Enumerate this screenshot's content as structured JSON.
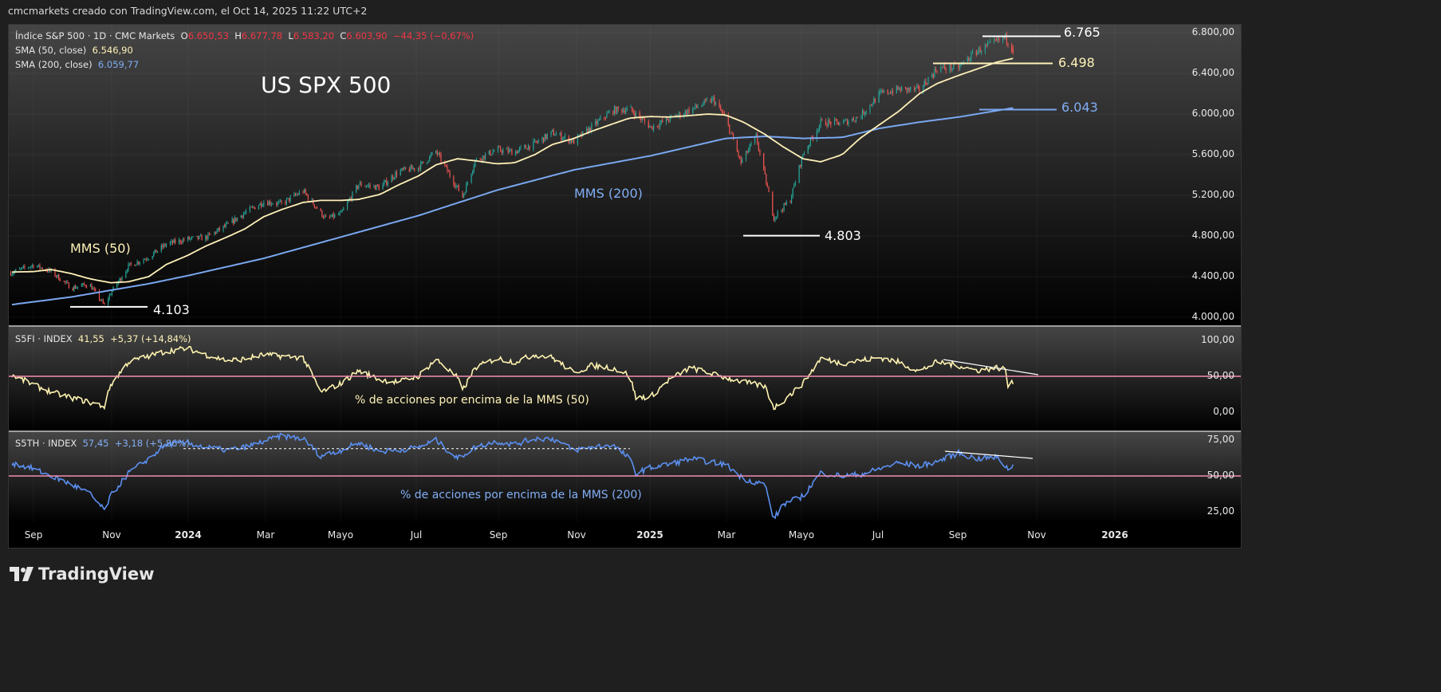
{
  "credit": "cmcmarkets creado con TradingView.com, el Oct 14, 2025 11:22 UTC+2",
  "legend": {
    "symbol": "Índice S&P 500 · 1D · CMC Markets",
    "o_label": "O",
    "o": "6.650,53",
    "h_label": "H",
    "h": "6.677,78",
    "l_label": "L",
    "l": "6.583,20",
    "c_label": "C",
    "c": "6.603,90",
    "change": "−44,35 (−0,67%)",
    "sma50_label": "SMA (50, close)",
    "sma50": "6.546,90",
    "sma200_label": "SMA (200, close)",
    "sma200": "6.059,77",
    "s5fi_label": "S5FI · INDEX",
    "s5fi": "41,55",
    "s5fi_change": "+5,37 (+14,84%)",
    "s5th_label": "S5TH · INDEX",
    "s5th": "57,45",
    "s5th_change": "+3,18 (+5,86%)"
  },
  "annotations": {
    "title": "US SPX 500",
    "mms50": "MMS (50)",
    "mms200": "MMS (200)",
    "level_high": "6.765",
    "level_sma50": "6.498",
    "level_sma200": "6.043",
    "level_low_2025": "4.803",
    "level_low_2023": "4.103",
    "s5fi_caption": "% de acciones por encima de la MMS (50)",
    "s5th_caption": "% de acciones por encima de la MMS (200)"
  },
  "footer": {
    "brand": "TradingView"
  },
  "colors": {
    "up": "#26a69a",
    "down": "#ef5350",
    "sma50": "#fff0b8",
    "sma200": "#7aa7f0",
    "s5fi": "#fff3b0",
    "s5th": "#5b8ff0",
    "threshold": "#f48fb1"
  },
  "chart_data": [
    {
      "type": "candlestick",
      "title": "US SPX 500",
      "price_axis": {
        "ticks": [
          "6.800,00",
          "6.400,00",
          "6.000,00",
          "5.600,00",
          "5.200,00",
          "4.800,00",
          "4.400,00",
          "4.000,00"
        ],
        "ylim": [
          4000,
          6800
        ]
      },
      "time_axis": {
        "labels": [
          "Sep",
          "Nov",
          "2024",
          "Mar",
          "Mayo",
          "Jul",
          "Sep",
          "Nov",
          "2025",
          "Mar",
          "Mayo",
          "Jul",
          "Sep",
          "Nov",
          "2026"
        ]
      },
      "last_candle": {
        "date": "2025-10-14",
        "open": 6650.53,
        "high": 6677.78,
        "low": 6583.2,
        "close": 6603.9
      },
      "close_path": [
        [
          "2023-08-15",
          4440
        ],
        [
          "2023-09-01",
          4515
        ],
        [
          "2023-09-15",
          4450
        ],
        [
          "2023-10-01",
          4288
        ],
        [
          "2023-10-15",
          4327
        ],
        [
          "2023-10-27",
          4117
        ],
        [
          "2023-11-01",
          4237
        ],
        [
          "2023-11-15",
          4502
        ],
        [
          "2023-12-01",
          4594
        ],
        [
          "2023-12-15",
          4719
        ],
        [
          "2024-01-01",
          4770
        ],
        [
          "2024-01-15",
          4783
        ],
        [
          "2024-02-01",
          4906
        ],
        [
          "2024-02-15",
          5029
        ],
        [
          "2024-03-01",
          5137
        ],
        [
          "2024-03-15",
          5117
        ],
        [
          "2024-04-01",
          5243
        ],
        [
          "2024-04-19",
          4967
        ],
        [
          "2024-05-01",
          5018
        ],
        [
          "2024-05-15",
          5308
        ],
        [
          "2024-06-01",
          5277
        ],
        [
          "2024-06-15",
          5431
        ],
        [
          "2024-07-01",
          5475
        ],
        [
          "2024-07-15",
          5631
        ],
        [
          "2024-08-05",
          5186
        ],
        [
          "2024-08-15",
          5543
        ],
        [
          "2024-09-01",
          5648
        ],
        [
          "2024-09-15",
          5626
        ],
        [
          "2024-10-01",
          5708
        ],
        [
          "2024-10-15",
          5815
        ],
        [
          "2024-11-01",
          5728
        ],
        [
          "2024-11-15",
          5870
        ],
        [
          "2024-12-01",
          6032
        ],
        [
          "2024-12-15",
          6051
        ],
        [
          "2025-01-01",
          5868
        ],
        [
          "2025-01-15",
          5949
        ],
        [
          "2025-02-01",
          6040
        ],
        [
          "2025-02-19",
          6144
        ],
        [
          "2025-03-01",
          5954
        ],
        [
          "2025-03-13",
          5521
        ],
        [
          "2025-03-25",
          5776
        ],
        [
          "2025-04-08",
          4982
        ],
        [
          "2025-04-21",
          5158
        ],
        [
          "2025-05-01",
          5604
        ],
        [
          "2025-05-15",
          5916
        ],
        [
          "2025-06-01",
          5911
        ],
        [
          "2025-06-15",
          5977
        ],
        [
          "2025-07-01",
          6198
        ],
        [
          "2025-07-15",
          6243
        ],
        [
          "2025-08-01",
          6238
        ],
        [
          "2025-08-15",
          6449
        ],
        [
          "2025-09-01",
          6460
        ],
        [
          "2025-09-15",
          6615
        ],
        [
          "2025-10-01",
          6711
        ],
        [
          "2025-10-08",
          6753
        ],
        [
          "2025-10-13",
          6654
        ]
      ],
      "levels": [
        6765,
        6498,
        6043,
        4803,
        4103
      ],
      "series": [
        {
          "name": "SMA (50, close)",
          "values": [
            [
              "2023-08-15",
              4445
            ],
            [
              "2023-09-01",
              4450
            ],
            [
              "2023-09-15",
              4470
            ],
            [
              "2023-10-01",
              4430
            ],
            [
              "2023-10-15",
              4380
            ],
            [
              "2023-11-01",
              4340
            ],
            [
              "2023-11-15",
              4350
            ],
            [
              "2023-12-01",
              4400
            ],
            [
              "2023-12-15",
              4520
            ],
            [
              "2024-01-01",
              4610
            ],
            [
              "2024-01-15",
              4700
            ],
            [
              "2024-02-01",
              4790
            ],
            [
              "2024-02-15",
              4870
            ],
            [
              "2024-03-01",
              4990
            ],
            [
              "2024-03-15",
              5060
            ],
            [
              "2024-04-01",
              5130
            ],
            [
              "2024-04-15",
              5150
            ],
            [
              "2024-05-01",
              5150
            ],
            [
              "2024-05-15",
              5160
            ],
            [
              "2024-06-01",
              5210
            ],
            [
              "2024-06-15",
              5300
            ],
            [
              "2024-07-01",
              5390
            ],
            [
              "2024-07-15",
              5500
            ],
            [
              "2024-08-01",
              5560
            ],
            [
              "2024-08-15",
              5540
            ],
            [
              "2024-09-01",
              5510
            ],
            [
              "2024-09-15",
              5520
            ],
            [
              "2024-10-01",
              5600
            ],
            [
              "2024-10-15",
              5700
            ],
            [
              "2024-11-01",
              5760
            ],
            [
              "2024-11-15",
              5830
            ],
            [
              "2024-12-01",
              5900
            ],
            [
              "2024-12-15",
              5960
            ],
            [
              "2025-01-01",
              5975
            ],
            [
              "2025-01-15",
              5970
            ],
            [
              "2025-02-01",
              5985
            ],
            [
              "2025-02-15",
              6000
            ],
            [
              "2025-03-01",
              5990
            ],
            [
              "2025-03-15",
              5920
            ],
            [
              "2025-04-01",
              5800
            ],
            [
              "2025-04-15",
              5680
            ],
            [
              "2025-05-01",
              5560
            ],
            [
              "2025-05-15",
              5530
            ],
            [
              "2025-06-01",
              5600
            ],
            [
              "2025-06-15",
              5760
            ],
            [
              "2025-07-01",
              5900
            ],
            [
              "2025-07-15",
              6020
            ],
            [
              "2025-08-01",
              6200
            ],
            [
              "2025-08-15",
              6300
            ],
            [
              "2025-09-01",
              6380
            ],
            [
              "2025-09-15",
              6440
            ],
            [
              "2025-10-01",
              6510
            ],
            [
              "2025-10-14",
              6547
            ]
          ]
        },
        {
          "name": "SMA (200, close)",
          "values": [
            [
              "2023-08-15",
              4125
            ],
            [
              "2023-10-01",
              4200
            ],
            [
              "2023-12-01",
              4330
            ],
            [
              "2024-01-01",
              4410
            ],
            [
              "2024-03-01",
              4580
            ],
            [
              "2024-05-01",
              4790
            ],
            [
              "2024-07-01",
              5000
            ],
            [
              "2024-09-01",
              5250
            ],
            [
              "2024-11-01",
              5450
            ],
            [
              "2025-01-01",
              5590
            ],
            [
              "2025-03-01",
              5760
            ],
            [
              "2025-04-01",
              5780
            ],
            [
              "2025-05-01",
              5760
            ],
            [
              "2025-06-01",
              5770
            ],
            [
              "2025-07-01",
              5860
            ],
            [
              "2025-08-01",
              5920
            ],
            [
              "2025-09-01",
              5970
            ],
            [
              "2025-10-14",
              6060
            ]
          ]
        }
      ]
    },
    {
      "type": "line",
      "name": "S5FI · INDEX",
      "y_ticks": [
        "100,00",
        "50,00",
        "0,00"
      ],
      "ylim": [
        0,
        100
      ],
      "threshold": 50,
      "values": [
        [
          "2023-08-15",
          52
        ],
        [
          "2023-09-01",
          38
        ],
        [
          "2023-09-15",
          28
        ],
        [
          "2023-10-01",
          20
        ],
        [
          "2023-10-15",
          14
        ],
        [
          "2023-10-27",
          8
        ],
        [
          "2023-11-01",
          38
        ],
        [
          "2023-11-15",
          70
        ],
        [
          "2023-12-01",
          78
        ],
        [
          "2023-12-15",
          85
        ],
        [
          "2024-01-01",
          89
        ],
        [
          "2024-01-15",
          80
        ],
        [
          "2024-02-01",
          72
        ],
        [
          "2024-02-15",
          74
        ],
        [
          "2024-03-01",
          80
        ],
        [
          "2024-03-15",
          78
        ],
        [
          "2024-04-01",
          76
        ],
        [
          "2024-04-15",
          28
        ],
        [
          "2024-05-01",
          40
        ],
        [
          "2024-05-15",
          58
        ],
        [
          "2024-06-01",
          45
        ],
        [
          "2024-06-15",
          42
        ],
        [
          "2024-07-01",
          50
        ],
        [
          "2024-07-15",
          74
        ],
        [
          "2024-08-01",
          48
        ],
        [
          "2024-08-05",
          30
        ],
        [
          "2024-08-15",
          62
        ],
        [
          "2024-09-01",
          75
        ],
        [
          "2024-09-15",
          70
        ],
        [
          "2024-10-01",
          80
        ],
        [
          "2024-10-15",
          76
        ],
        [
          "2024-11-01",
          55
        ],
        [
          "2024-11-15",
          65
        ],
        [
          "2024-12-01",
          62
        ],
        [
          "2024-12-15",
          52
        ],
        [
          "2024-12-20",
          20
        ],
        [
          "2025-01-01",
          22
        ],
        [
          "2025-01-15",
          45
        ],
        [
          "2025-02-01",
          62
        ],
        [
          "2025-02-15",
          55
        ],
        [
          "2025-03-01",
          48
        ],
        [
          "2025-03-15",
          42
        ],
        [
          "2025-04-01",
          36
        ],
        [
          "2025-04-08",
          6
        ],
        [
          "2025-04-15",
          15
        ],
        [
          "2025-05-01",
          40
        ],
        [
          "2025-05-15",
          75
        ],
        [
          "2025-06-01",
          68
        ],
        [
          "2025-06-15",
          72
        ],
        [
          "2025-07-01",
          76
        ],
        [
          "2025-07-15",
          70
        ],
        [
          "2025-08-01",
          57
        ],
        [
          "2025-08-15",
          70
        ],
        [
          "2025-09-01",
          65
        ],
        [
          "2025-09-15",
          58
        ],
        [
          "2025-10-01",
          62
        ],
        [
          "2025-10-08",
          60
        ],
        [
          "2025-10-10",
          36
        ],
        [
          "2025-10-14",
          41.55
        ]
      ]
    },
    {
      "type": "line",
      "name": "S5TH · INDEX",
      "y_ticks": [
        "75,00",
        "50,00",
        "25,00"
      ],
      "ylim": [
        10,
        80
      ],
      "threshold": 50,
      "values": [
        [
          "2023-08-15",
          59
        ],
        [
          "2023-09-01",
          55
        ],
        [
          "2023-09-15",
          50
        ],
        [
          "2023-10-01",
          44
        ],
        [
          "2023-10-15",
          38
        ],
        [
          "2023-10-27",
          26
        ],
        [
          "2023-11-01",
          36
        ],
        [
          "2023-11-15",
          52
        ],
        [
          "2023-12-01",
          62
        ],
        [
          "2023-12-15",
          72
        ],
        [
          "2024-01-01",
          73
        ],
        [
          "2024-01-15",
          70
        ],
        [
          "2024-02-01",
          68
        ],
        [
          "2024-02-15",
          70
        ],
        [
          "2024-03-01",
          74
        ],
        [
          "2024-03-15",
          78
        ],
        [
          "2024-04-01",
          76
        ],
        [
          "2024-04-15",
          64
        ],
        [
          "2024-05-01",
          68
        ],
        [
          "2024-05-15",
          73
        ],
        [
          "2024-06-01",
          67
        ],
        [
          "2024-06-15",
          68
        ],
        [
          "2024-07-01",
          70
        ],
        [
          "2024-07-15",
          75
        ],
        [
          "2024-08-01",
          62
        ],
        [
          "2024-08-15",
          70
        ],
        [
          "2024-09-01",
          74
        ],
        [
          "2024-09-15",
          72
        ],
        [
          "2024-10-01",
          76
        ],
        [
          "2024-10-15",
          76
        ],
        [
          "2024-11-01",
          68
        ],
        [
          "2024-11-15",
          70
        ],
        [
          "2024-12-01",
          72
        ],
        [
          "2024-12-15",
          62
        ],
        [
          "2024-12-20",
          52
        ],
        [
          "2025-01-01",
          56
        ],
        [
          "2025-01-15",
          58
        ],
        [
          "2025-02-01",
          62
        ],
        [
          "2025-02-15",
          60
        ],
        [
          "2025-03-01",
          58
        ],
        [
          "2025-03-15",
          48
        ],
        [
          "2025-04-01",
          44
        ],
        [
          "2025-04-08",
          20
        ],
        [
          "2025-04-15",
          30
        ],
        [
          "2025-05-01",
          36
        ],
        [
          "2025-05-15",
          52
        ],
        [
          "2025-06-01",
          50
        ],
        [
          "2025-06-15",
          51
        ],
        [
          "2025-07-01",
          55
        ],
        [
          "2025-07-15",
          59
        ],
        [
          "2025-08-01",
          57
        ],
        [
          "2025-08-15",
          60
        ],
        [
          "2025-09-01",
          66
        ],
        [
          "2025-09-15",
          62
        ],
        [
          "2025-10-01",
          63
        ],
        [
          "2025-10-10",
          55
        ],
        [
          "2025-10-14",
          57.45
        ]
      ]
    }
  ]
}
